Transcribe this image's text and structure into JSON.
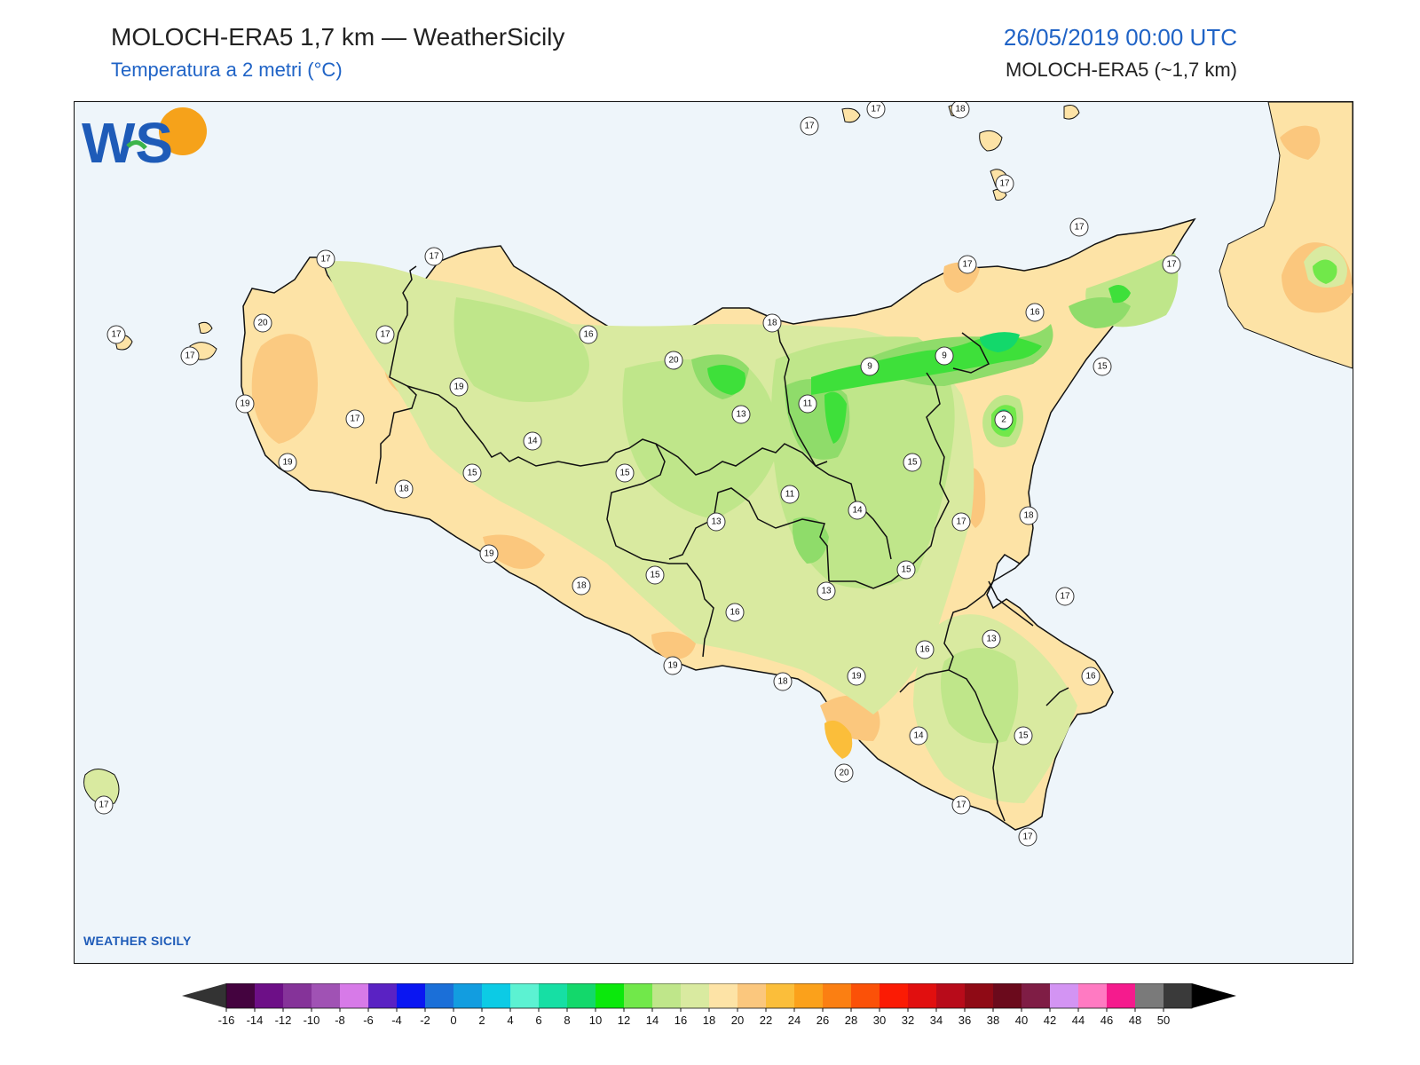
{
  "header": {
    "title": "MOLOCH-ERA5 1,7 km — WeatherSicily",
    "subtitle": "Temperatura a 2 metri (°C)",
    "datetime": "26/05/2019 00:00 UTC",
    "model": "MOLOCH-ERA5 (~1,7 km)"
  },
  "logo": {
    "text": "WEATHER SICILY",
    "letters": "WS"
  },
  "colors": {
    "sea": "#eef5fa",
    "accent": "#1f63c6",
    "light_orange": "#fde3a6",
    "orange": "#fbc77d",
    "pale_green": "#d9eaa0",
    "green": "#bfe68a",
    "mid_green": "#8fdc6a",
    "bright_green": "#3ee03a"
  },
  "station_values": [
    {
      "id": "s1",
      "value": "17"
    },
    {
      "id": "s2",
      "value": "17"
    },
    {
      "id": "s3",
      "value": "18"
    },
    {
      "id": "s4",
      "value": "17"
    },
    {
      "id": "s5",
      "value": "17"
    },
    {
      "id": "s6",
      "value": "17"
    },
    {
      "id": "s7",
      "value": "17"
    },
    {
      "id": "s8",
      "value": "17"
    },
    {
      "id": "s9",
      "value": "17"
    },
    {
      "id": "s10",
      "value": "16"
    },
    {
      "id": "s11",
      "value": "18"
    },
    {
      "id": "s12",
      "value": "15"
    },
    {
      "id": "s13",
      "value": "16"
    },
    {
      "id": "s14",
      "value": "20"
    },
    {
      "id": "s15",
      "value": "9"
    },
    {
      "id": "s16",
      "value": "9"
    },
    {
      "id": "s17",
      "value": "17"
    },
    {
      "id": "s18",
      "value": "17"
    },
    {
      "id": "s19",
      "value": "17"
    },
    {
      "id": "s20",
      "value": "20"
    },
    {
      "id": "s21",
      "value": "17"
    },
    {
      "id": "s22",
      "value": "19"
    },
    {
      "id": "s23",
      "value": "19"
    },
    {
      "id": "s24",
      "value": "17"
    },
    {
      "id": "s25",
      "value": "19"
    },
    {
      "id": "s26",
      "value": "11"
    },
    {
      "id": "s27",
      "value": "13"
    },
    {
      "id": "s28",
      "value": "2"
    },
    {
      "id": "s29",
      "value": "14"
    },
    {
      "id": "s30",
      "value": "15"
    },
    {
      "id": "s31",
      "value": "15"
    },
    {
      "id": "s32",
      "value": "18"
    },
    {
      "id": "s33",
      "value": "15"
    },
    {
      "id": "s34",
      "value": "11"
    },
    {
      "id": "s35",
      "value": "13"
    },
    {
      "id": "s36",
      "value": "14"
    },
    {
      "id": "s37",
      "value": "17"
    },
    {
      "id": "s38",
      "value": "18"
    },
    {
      "id": "s39",
      "value": "19"
    },
    {
      "id": "s40",
      "value": "15"
    },
    {
      "id": "s41",
      "value": "15"
    },
    {
      "id": "s42",
      "value": "18"
    },
    {
      "id": "s43",
      "value": "13"
    },
    {
      "id": "s44",
      "value": "16"
    },
    {
      "id": "s45",
      "value": "17"
    },
    {
      "id": "s46",
      "value": "13"
    },
    {
      "id": "s47",
      "value": "16"
    },
    {
      "id": "s48",
      "value": "19"
    },
    {
      "id": "s49",
      "value": "18"
    },
    {
      "id": "s50",
      "value": "19"
    },
    {
      "id": "s51",
      "value": "16"
    },
    {
      "id": "s52",
      "value": "14"
    },
    {
      "id": "s53",
      "value": "15"
    },
    {
      "id": "s54",
      "value": "20"
    },
    {
      "id": "s55",
      "value": "17"
    },
    {
      "id": "s56",
      "value": "17"
    },
    {
      "id": "s57",
      "value": "17"
    }
  ],
  "colorbar": {
    "ticks": [
      "-16",
      "-14",
      "-12",
      "-10",
      "-8",
      "-6",
      "-4",
      "-2",
      "0",
      "2",
      "4",
      "6",
      "8",
      "10",
      "12",
      "14",
      "16",
      "18",
      "20",
      "22",
      "24",
      "26",
      "28",
      "30",
      "32",
      "34",
      "36",
      "38",
      "40",
      "42",
      "44",
      "46",
      "48",
      "50"
    ],
    "colors": [
      "#44033f",
      "#6d0f87",
      "#853399",
      "#a052b4",
      "#d77ae8",
      "#5a22c3",
      "#0a16f2",
      "#1b6fd8",
      "#129de0",
      "#0ccbe5",
      "#5cf2d2",
      "#16dfa4",
      "#13d86b",
      "#0be80c",
      "#71e84a",
      "#bfe68a",
      "#d9eaa0",
      "#fde3a6",
      "#fbc77d",
      "#fbbe3a",
      "#fba11b",
      "#fb7f12",
      "#fb5108",
      "#fb1b04",
      "#e10f0f",
      "#b80b1a",
      "#8f0a15",
      "#6b0a1c",
      "#7f1d45",
      "#d394f3",
      "#ff7ac2",
      "#f51b8d",
      "#7a7a7a",
      "#3a3a3a"
    ],
    "end_low": "#333333",
    "end_high": "#000000"
  }
}
